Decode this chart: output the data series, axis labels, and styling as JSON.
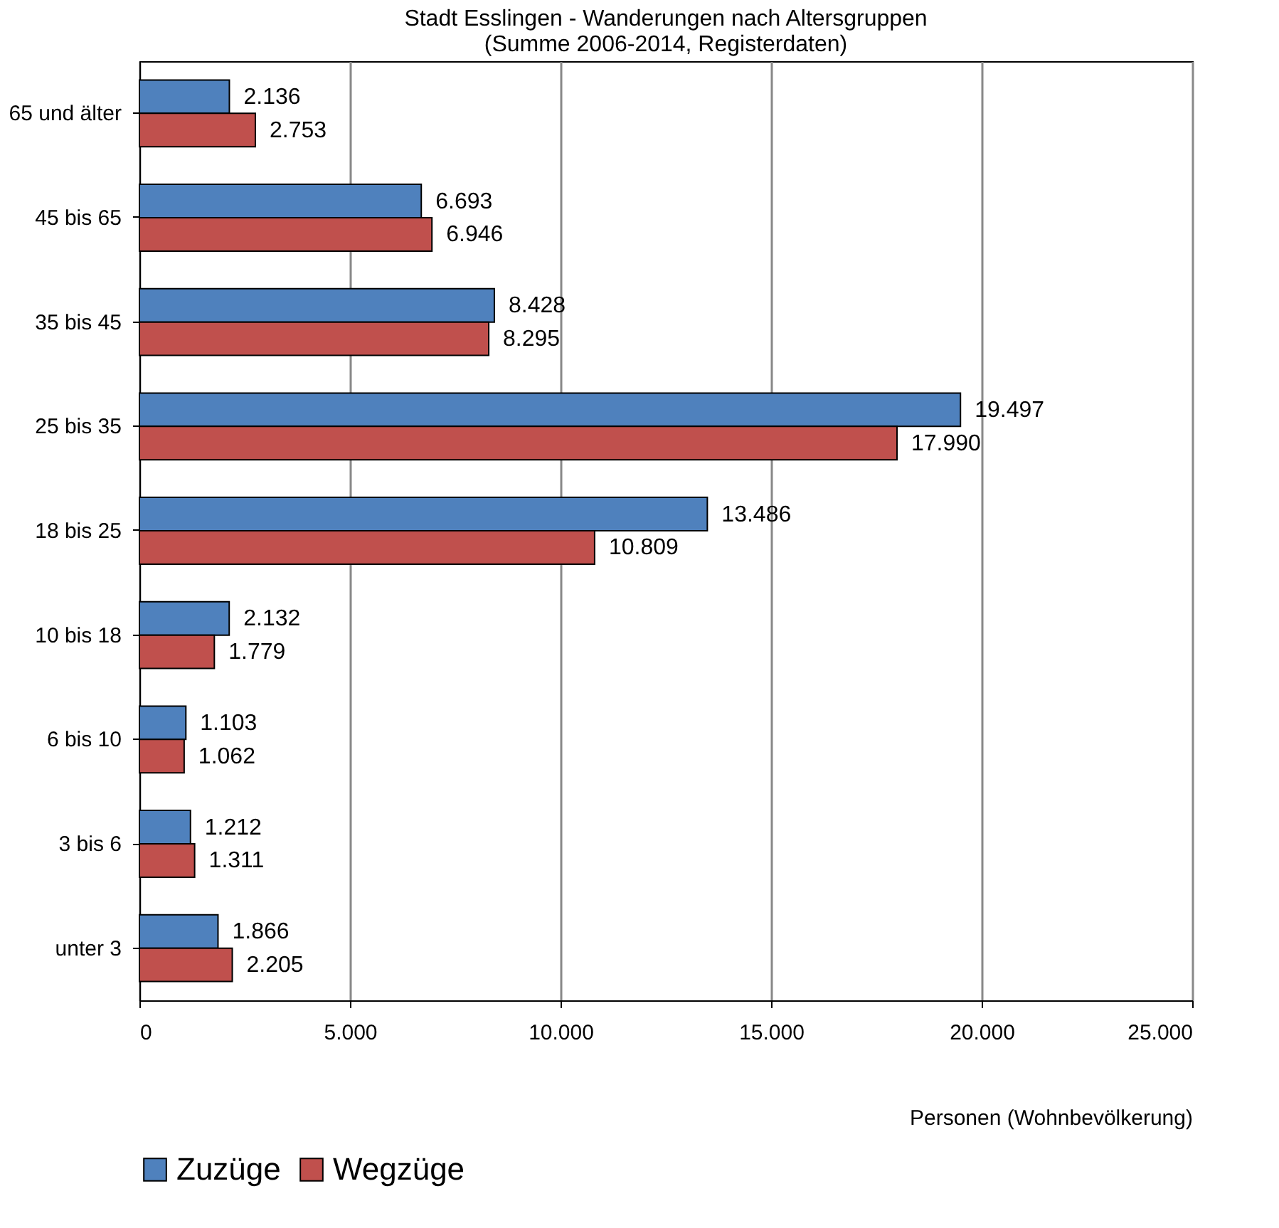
{
  "chart_data": {
    "type": "bar",
    "orientation": "horizontal",
    "title": [
      "Stadt Esslingen - Wanderungen nach Altersgruppen",
      "(Summe 2006-2014, Registerdaten)"
    ],
    "xlabel": "Personen (Wohnbevölkerung)",
    "categories": [
      "65 und älter",
      "45 bis 65",
      "35 bis 45",
      "25 bis 35",
      "18 bis 25",
      "10 bis 18",
      "6 bis 10",
      "3 bis 6",
      "unter 3"
    ],
    "series": [
      {
        "name": "Zuzüge",
        "color": "#4f81bd",
        "values": [
          2136,
          6693,
          8428,
          19497,
          13486,
          2132,
          1103,
          1212,
          1866
        ],
        "value_labels": [
          "2.136",
          "6.693",
          "8.428",
          "19.497",
          "13.486",
          "2.132",
          "1.103",
          "1.212",
          "1.866"
        ]
      },
      {
        "name": "Wegzüge",
        "color": "#c0504d",
        "values": [
          2753,
          6946,
          8295,
          17990,
          10809,
          1779,
          1062,
          1311,
          2205
        ],
        "value_labels": [
          "2.753",
          "6.946",
          "8.295",
          "17.990",
          "10.809",
          "1.779",
          "1.062",
          "1.311",
          "2.205"
        ]
      }
    ],
    "xlim": [
      0,
      25000
    ],
    "xticks": [
      0,
      {
        "value": 5000,
        "label": "5.000"
      },
      {
        "value": 10000,
        "label": "10.000"
      },
      {
        "value": 15000,
        "label": "15.000"
      },
      {
        "value": 20000,
        "label": "20.000"
      },
      {
        "value": 25000,
        "label": "25.000"
      }
    ],
    "grid": "x",
    "legend": "bottom"
  }
}
